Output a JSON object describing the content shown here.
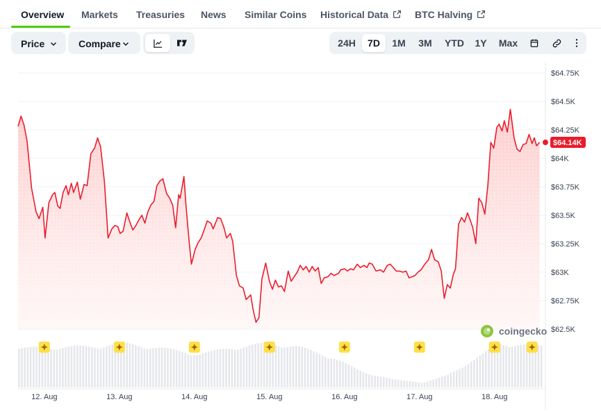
{
  "tabs": {
    "overview": "Overview",
    "markets": "Markets",
    "treasuries": "Treasuries",
    "news": "News",
    "similar_coins": "Similar Coins",
    "historical_data": "Historical Data",
    "btc_halving": "BTC Halving"
  },
  "toolbar": {
    "price": "Price",
    "compare": "Compare",
    "ranges": [
      "24H",
      "7D",
      "1M",
      "3M",
      "YTD",
      "1Y",
      "Max"
    ],
    "active_range": "7D",
    "line_icon": "line-chart-icon",
    "tradingview_icon": "tradingview-icon",
    "calendar_icon": "calendar-icon",
    "link_icon": "link-icon",
    "more_icon": "more-vertical-icon"
  },
  "colors": {
    "line": "#ea1c2c",
    "fill_top": "#fecaca",
    "volume": "#e5e7eb",
    "accent": "#4bcc00",
    "marker": "#fde047"
  },
  "chart_data": {
    "type": "area",
    "x_unit": "days",
    "x_tick_labels": [
      "12. Aug",
      "13. Aug",
      "14. Aug",
      "15. Aug",
      "16. Aug",
      "17. Aug",
      "18. Aug"
    ],
    "x_tick_positions": [
      0.35,
      1.35,
      2.35,
      3.35,
      4.35,
      5.35,
      6.35
    ],
    "y_tick_labels": [
      "$64.75K",
      "$64.5K",
      "$64.25K",
      "$64K",
      "$63.75K",
      "$63.5K",
      "$63.25K",
      "$63K",
      "$62.75K",
      "$62.5K"
    ],
    "y_tick_values": [
      64750,
      64500,
      64250,
      64000,
      63750,
      63500,
      63250,
      63000,
      62750,
      62500
    ],
    "ylim": [
      62500,
      64750
    ],
    "xlim": [
      0,
      7
    ],
    "current_price_label": "$64.14K",
    "current_price": 64140,
    "watermark": "coingecko",
    "event_marker_days": [
      0.35,
      1.35,
      2.35,
      3.35,
      4.35,
      5.35,
      6.35,
      6.85
    ],
    "series": [
      {
        "values": [
          [
            0.0,
            64280
          ],
          [
            0.04,
            64370
          ],
          [
            0.08,
            64290
          ],
          [
            0.12,
            64150
          ],
          [
            0.18,
            63740
          ],
          [
            0.24,
            63530
          ],
          [
            0.28,
            63470
          ],
          [
            0.33,
            63570
          ],
          [
            0.36,
            63300
          ],
          [
            0.41,
            63610
          ],
          [
            0.46,
            63680
          ],
          [
            0.49,
            63700
          ],
          [
            0.53,
            63580
          ],
          [
            0.56,
            63560
          ],
          [
            0.6,
            63700
          ],
          [
            0.64,
            63760
          ],
          [
            0.67,
            63680
          ],
          [
            0.71,
            63780
          ],
          [
            0.74,
            63700
          ],
          [
            0.79,
            63790
          ],
          [
            0.83,
            63640
          ],
          [
            0.88,
            63770
          ],
          [
            0.92,
            63760
          ],
          [
            0.97,
            64040
          ],
          [
            1.02,
            64090
          ],
          [
            1.06,
            64180
          ],
          [
            1.1,
            64100
          ],
          [
            1.15,
            63800
          ],
          [
            1.2,
            63300
          ],
          [
            1.25,
            63380
          ],
          [
            1.29,
            63410
          ],
          [
            1.33,
            63400
          ],
          [
            1.36,
            63340
          ],
          [
            1.4,
            63360
          ],
          [
            1.45,
            63520
          ],
          [
            1.49,
            63440
          ],
          [
            1.53,
            63370
          ],
          [
            1.57,
            63410
          ],
          [
            1.61,
            63460
          ],
          [
            1.65,
            63500
          ],
          [
            1.69,
            63430
          ],
          [
            1.73,
            63530
          ],
          [
            1.77,
            63590
          ],
          [
            1.81,
            63620
          ],
          [
            1.85,
            63760
          ],
          [
            1.89,
            63800
          ],
          [
            1.93,
            63820
          ],
          [
            1.98,
            63690
          ],
          [
            2.02,
            63650
          ],
          [
            2.06,
            63590
          ],
          [
            2.1,
            63390
          ],
          [
            2.14,
            63680
          ],
          [
            2.16,
            63650
          ],
          [
            2.21,
            63840
          ],
          [
            2.24,
            63570
          ],
          [
            2.28,
            63270
          ],
          [
            2.31,
            63070
          ],
          [
            2.36,
            63200
          ],
          [
            2.4,
            63260
          ],
          [
            2.44,
            63300
          ],
          [
            2.48,
            63370
          ],
          [
            2.52,
            63450
          ],
          [
            2.57,
            63430
          ],
          [
            2.6,
            63380
          ],
          [
            2.66,
            63480
          ],
          [
            2.7,
            63470
          ],
          [
            2.74,
            63400
          ],
          [
            2.78,
            63300
          ],
          [
            2.83,
            63340
          ],
          [
            2.86,
            63270
          ],
          [
            2.91,
            62970
          ],
          [
            2.95,
            62880
          ],
          [
            3.0,
            62860
          ],
          [
            3.04,
            62760
          ],
          [
            3.1,
            62800
          ],
          [
            3.13,
            62680
          ],
          [
            3.17,
            62560
          ],
          [
            3.21,
            62600
          ],
          [
            3.25,
            62940
          ],
          [
            3.3,
            63080
          ],
          [
            3.35,
            62920
          ],
          [
            3.39,
            62850
          ],
          [
            3.43,
            62930
          ],
          [
            3.47,
            62870
          ],
          [
            3.51,
            62880
          ],
          [
            3.55,
            62830
          ],
          [
            3.6,
            63010
          ],
          [
            3.64,
            62920
          ],
          [
            3.68,
            62960
          ],
          [
            3.72,
            63000
          ],
          [
            3.76,
            63060
          ],
          [
            3.8,
            63020
          ],
          [
            3.84,
            63050
          ],
          [
            3.88,
            63000
          ],
          [
            3.92,
            63050
          ],
          [
            3.96,
            63010
          ],
          [
            4.0,
            63040
          ],
          [
            4.04,
            62900
          ],
          [
            4.08,
            62950
          ],
          [
            4.13,
            62960
          ],
          [
            4.17,
            62990
          ],
          [
            4.21,
            62970
          ],
          [
            4.27,
            62990
          ],
          [
            4.3,
            63020
          ],
          [
            4.35,
            63030
          ],
          [
            4.39,
            63010
          ],
          [
            4.43,
            63030
          ],
          [
            4.47,
            63020
          ],
          [
            4.52,
            63070
          ],
          [
            4.56,
            63040
          ],
          [
            4.61,
            63060
          ],
          [
            4.65,
            63040
          ],
          [
            4.68,
            63080
          ],
          [
            4.72,
            63070
          ],
          [
            4.77,
            63010
          ],
          [
            4.83,
            63020
          ],
          [
            4.87,
            63000
          ],
          [
            4.92,
            63060
          ],
          [
            4.96,
            63070
          ],
          [
            5.0,
            63040
          ],
          [
            5.04,
            63010
          ],
          [
            5.08,
            63010
          ],
          [
            5.13,
            63000
          ],
          [
            5.17,
            63010
          ],
          [
            5.21,
            62950
          ],
          [
            5.25,
            62960
          ],
          [
            5.29,
            62970
          ],
          [
            5.33,
            63000
          ],
          [
            5.37,
            63020
          ],
          [
            5.42,
            63070
          ],
          [
            5.47,
            63110
          ],
          [
            5.51,
            63200
          ],
          [
            5.55,
            63110
          ],
          [
            5.6,
            63090
          ],
          [
            5.64,
            63010
          ],
          [
            5.68,
            62770
          ],
          [
            5.72,
            62890
          ],
          [
            5.76,
            62860
          ],
          [
            5.8,
            62980
          ],
          [
            5.83,
            63030
          ],
          [
            5.87,
            63420
          ],
          [
            5.91,
            63480
          ],
          [
            5.95,
            63440
          ],
          [
            5.99,
            63520
          ],
          [
            6.03,
            63450
          ],
          [
            6.06,
            63390
          ],
          [
            6.1,
            63250
          ],
          [
            6.14,
            63650
          ],
          [
            6.18,
            63610
          ],
          [
            6.22,
            63510
          ],
          [
            6.26,
            63760
          ],
          [
            6.3,
            64140
          ],
          [
            6.34,
            64090
          ],
          [
            6.38,
            64270
          ],
          [
            6.41,
            64300
          ],
          [
            6.45,
            64240
          ],
          [
            6.48,
            64330
          ],
          [
            6.52,
            64230
          ],
          [
            6.56,
            64430
          ],
          [
            6.61,
            64180
          ],
          [
            6.65,
            64080
          ],
          [
            6.69,
            64060
          ],
          [
            6.73,
            64120
          ],
          [
            6.77,
            64130
          ],
          [
            6.81,
            64210
          ],
          [
            6.85,
            64130
          ],
          [
            6.88,
            64180
          ],
          [
            6.91,
            64110
          ],
          [
            6.95,
            64140
          ]
        ]
      }
    ],
    "volume_shape": [
      [
        0.0,
        0.4
      ],
      [
        1.0,
        0.42
      ],
      [
        1.4,
        0.45
      ],
      [
        1.9,
        0.4
      ],
      [
        2.4,
        0.34
      ],
      [
        2.8,
        0.4
      ],
      [
        3.3,
        0.45
      ],
      [
        3.7,
        0.42
      ],
      [
        4.2,
        0.3
      ],
      [
        4.6,
        0.15
      ],
      [
        5.0,
        0.08
      ],
      [
        5.4,
        0.05
      ],
      [
        5.7,
        0.12
      ],
      [
        6.1,
        0.3
      ],
      [
        6.4,
        0.45
      ],
      [
        7.0,
        0.42
      ]
    ]
  }
}
